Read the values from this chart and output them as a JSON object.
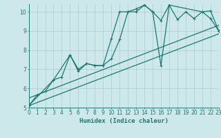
{
  "xlabel": "Humidex (Indice chaleur)",
  "xlim": [
    0,
    23
  ],
  "ylim": [
    5,
    10.4
  ],
  "yticks": [
    5,
    6,
    7,
    8,
    9,
    10
  ],
  "xticks": [
    0,
    1,
    2,
    3,
    4,
    5,
    6,
    7,
    8,
    9,
    10,
    11,
    12,
    13,
    14,
    15,
    16,
    17,
    18,
    19,
    20,
    21,
    22,
    23
  ],
  "bg_color": "#cce8eb",
  "line_color": "#1a7a6e",
  "grid_color": "#aacccc",
  "line1_x": [
    0,
    1,
    2,
    3,
    4,
    5,
    6,
    7,
    8,
    9,
    10,
    11,
    12,
    13,
    14,
    15,
    16,
    17,
    18,
    19,
    20,
    21,
    22,
    23
  ],
  "line1_y": [
    5.1,
    5.65,
    5.85,
    6.45,
    6.6,
    7.75,
    6.9,
    7.3,
    7.2,
    7.2,
    8.6,
    10.0,
    10.0,
    10.15,
    10.35,
    10.0,
    9.55,
    10.35,
    9.6,
    10.0,
    9.65,
    10.0,
    10.05,
    9.0
  ],
  "line2_x": [
    0,
    3,
    5,
    6,
    7,
    8,
    9,
    10,
    11,
    12,
    13,
    14,
    15,
    16,
    17,
    21,
    22,
    23
  ],
  "line2_y": [
    5.1,
    6.45,
    7.75,
    7.0,
    7.3,
    7.2,
    7.2,
    7.55,
    8.55,
    10.0,
    10.0,
    10.35,
    10.0,
    7.2,
    10.35,
    10.0,
    9.65,
    9.0
  ],
  "line3_x": [
    0,
    23
  ],
  "line3_y": [
    5.1,
    8.85
  ],
  "line4_x": [
    0,
    23
  ],
  "line4_y": [
    5.5,
    9.3
  ],
  "marker_size": 3.5,
  "linewidth": 0.9
}
